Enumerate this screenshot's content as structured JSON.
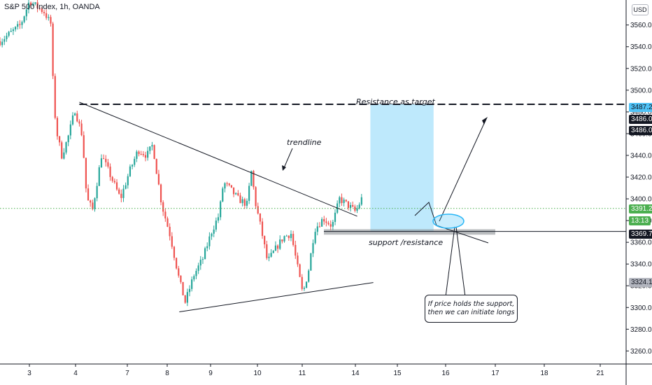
{
  "header": {
    "symbol_title": "S&P 500 Index, 1h, OANDA",
    "currency_label": "USD"
  },
  "annotations": {
    "resistance_target": "Resistance as target",
    "trendline": "trendline",
    "support_resistance": "support /resistance",
    "callout_line1": "If price holds the support,",
    "callout_line2": "then we can initiate longs"
  },
  "price_labels": {
    "target_top": "3487.2",
    "resistance_a": "3486.0",
    "resistance_b": "3486.0",
    "current": "3391.2",
    "countdown": "13:13",
    "entry": "3369.7",
    "stop": "3324.1"
  },
  "colors": {
    "up": "#26a69a",
    "down": "#ef5350",
    "target_zone": "#b3e5fc",
    "stop_zone": "#d1d4dc",
    "current_line": "#4caf50",
    "ellipse": "#29b6f6"
  },
  "chart_data": {
    "type": "candlestick",
    "title": "S&P 500 Index, 1h, OANDA",
    "x_tick_labels": [
      "3",
      "4",
      "7",
      "8",
      "9",
      "10",
      "11",
      "14",
      "15",
      "16",
      "17",
      "18",
      "21"
    ],
    "y_tick_values": [
      3260,
      3280,
      3300,
      3320,
      3340,
      3360,
      3380,
      3400,
      3420,
      3440,
      3460,
      3480,
      3500,
      3520,
      3540,
      3560
    ],
    "y_tick_labels": [
      "3260.0",
      "3280.0",
      "3300.0",
      "3320.0",
      "3340.0",
      "3360.0",
      "3380.0",
      "3400.0",
      "3420.0",
      "3440.0",
      "3460.0",
      "3480.0",
      "3500.0",
      "3520.0",
      "3540.0",
      "3560.0"
    ],
    "ylim": [
      3248,
      3583
    ],
    "x_range_days": [
      2.3,
      23.6
    ],
    "path_points": [
      [
        2.3,
        3545
      ],
      [
        3.0,
        3560
      ],
      [
        3.3,
        3582
      ],
      [
        3.8,
        3572
      ],
      [
        4.05,
        3560
      ],
      [
        4.1,
        3510
      ],
      [
        4.2,
        3465
      ],
      [
        4.4,
        3440
      ],
      [
        4.6,
        3455
      ],
      [
        4.85,
        3482
      ],
      [
        5.1,
        3458
      ],
      [
        5.25,
        3400
      ],
      [
        5.45,
        3390
      ],
      [
        5.75,
        3440
      ],
      [
        6.0,
        3425
      ],
      [
        6.4,
        3400
      ],
      [
        6.7,
        3425
      ],
      [
        7.0,
        3445
      ],
      [
        7.3,
        3440
      ],
      [
        7.5,
        3450
      ],
      [
        7.6,
        3430
      ],
      [
        7.8,
        3395
      ],
      [
        8.1,
        3365
      ],
      [
        8.4,
        3325
      ],
      [
        8.6,
        3305
      ],
      [
        8.9,
        3330
      ],
      [
        9.2,
        3345
      ],
      [
        9.5,
        3370
      ],
      [
        9.75,
        3385
      ],
      [
        9.9,
        3415
      ],
      [
        10.1,
        3410
      ],
      [
        10.4,
        3400
      ],
      [
        10.7,
        3395
      ],
      [
        10.85,
        3425
      ],
      [
        11.0,
        3395
      ],
      [
        11.2,
        3370
      ],
      [
        11.4,
        3342
      ],
      [
        11.7,
        3355
      ],
      [
        11.95,
        3365
      ],
      [
        12.2,
        3368
      ],
      [
        12.4,
        3340
      ],
      [
        12.6,
        3312
      ],
      [
        12.8,
        3335
      ],
      [
        13.0,
        3372
      ],
      [
        13.3,
        3382
      ],
      [
        13.6,
        3375
      ],
      [
        13.85,
        3400
      ],
      [
        14.1,
        3395
      ],
      [
        14.4,
        3388
      ],
      [
        14.6,
        3400
      ]
    ],
    "shapes": {
      "resistance_level": 3487,
      "trendline_upper": [
        [
          5.0,
          3489
        ],
        [
          14.45,
          3384
        ]
      ],
      "trendline_lower": [
        [
          8.4,
          3296
        ],
        [
          15.0,
          3323
        ]
      ],
      "support_zone": [
        3367,
        3372
      ],
      "target_zone": {
        "from_x": 14.9,
        "to_x": 17.05,
        "from_y": 3370,
        "to_y": 3487
      },
      "stop_zone": {
        "from_x": 14.9,
        "to_x": 17.05,
        "from_y": 3324,
        "to_y": 3370
      },
      "current_price": 3391.2
    }
  }
}
